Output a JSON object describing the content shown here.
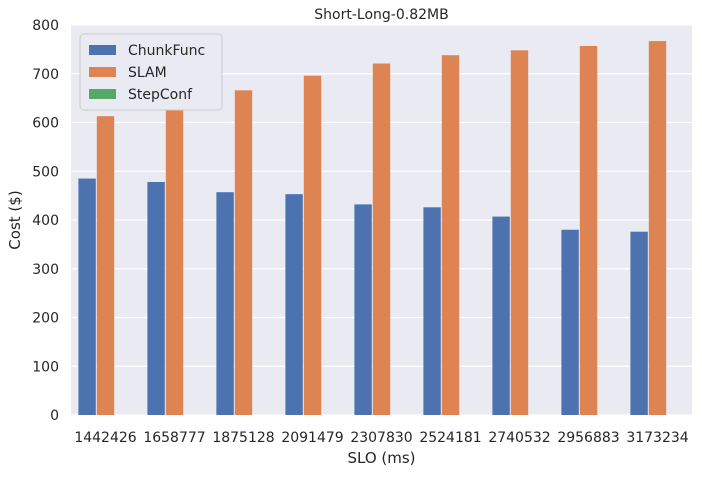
{
  "chart_data": {
    "type": "bar",
    "title": "Short-Long-0.82MB",
    "xlabel": "SLO (ms)",
    "ylabel": "Cost ($)",
    "categories": [
      "1442426",
      "1658777",
      "1875128",
      "2091479",
      "2307830",
      "2524181",
      "2740532",
      "2956883",
      "3173234"
    ],
    "series": [
      {
        "name": "ChunkFunc",
        "color": "#4c72b0",
        "values": [
          485,
          478,
          457,
          453,
          432,
          426,
          407,
          380,
          376
        ]
      },
      {
        "name": "SLAM",
        "color": "#dd8452",
        "values": [
          613,
          637,
          666,
          696,
          721,
          738,
          748,
          757,
          767
        ]
      },
      {
        "name": "StepConf",
        "color": "#55a868",
        "values": [
          0,
          0,
          0,
          0,
          0,
          0,
          0,
          0,
          0
        ]
      }
    ],
    "ylim": [
      0,
      800
    ],
    "yticks": [
      0,
      100,
      200,
      300,
      400,
      500,
      600,
      700,
      800
    ],
    "grid": true,
    "background": "#eaeaf2",
    "legend_position": "upper-left"
  }
}
